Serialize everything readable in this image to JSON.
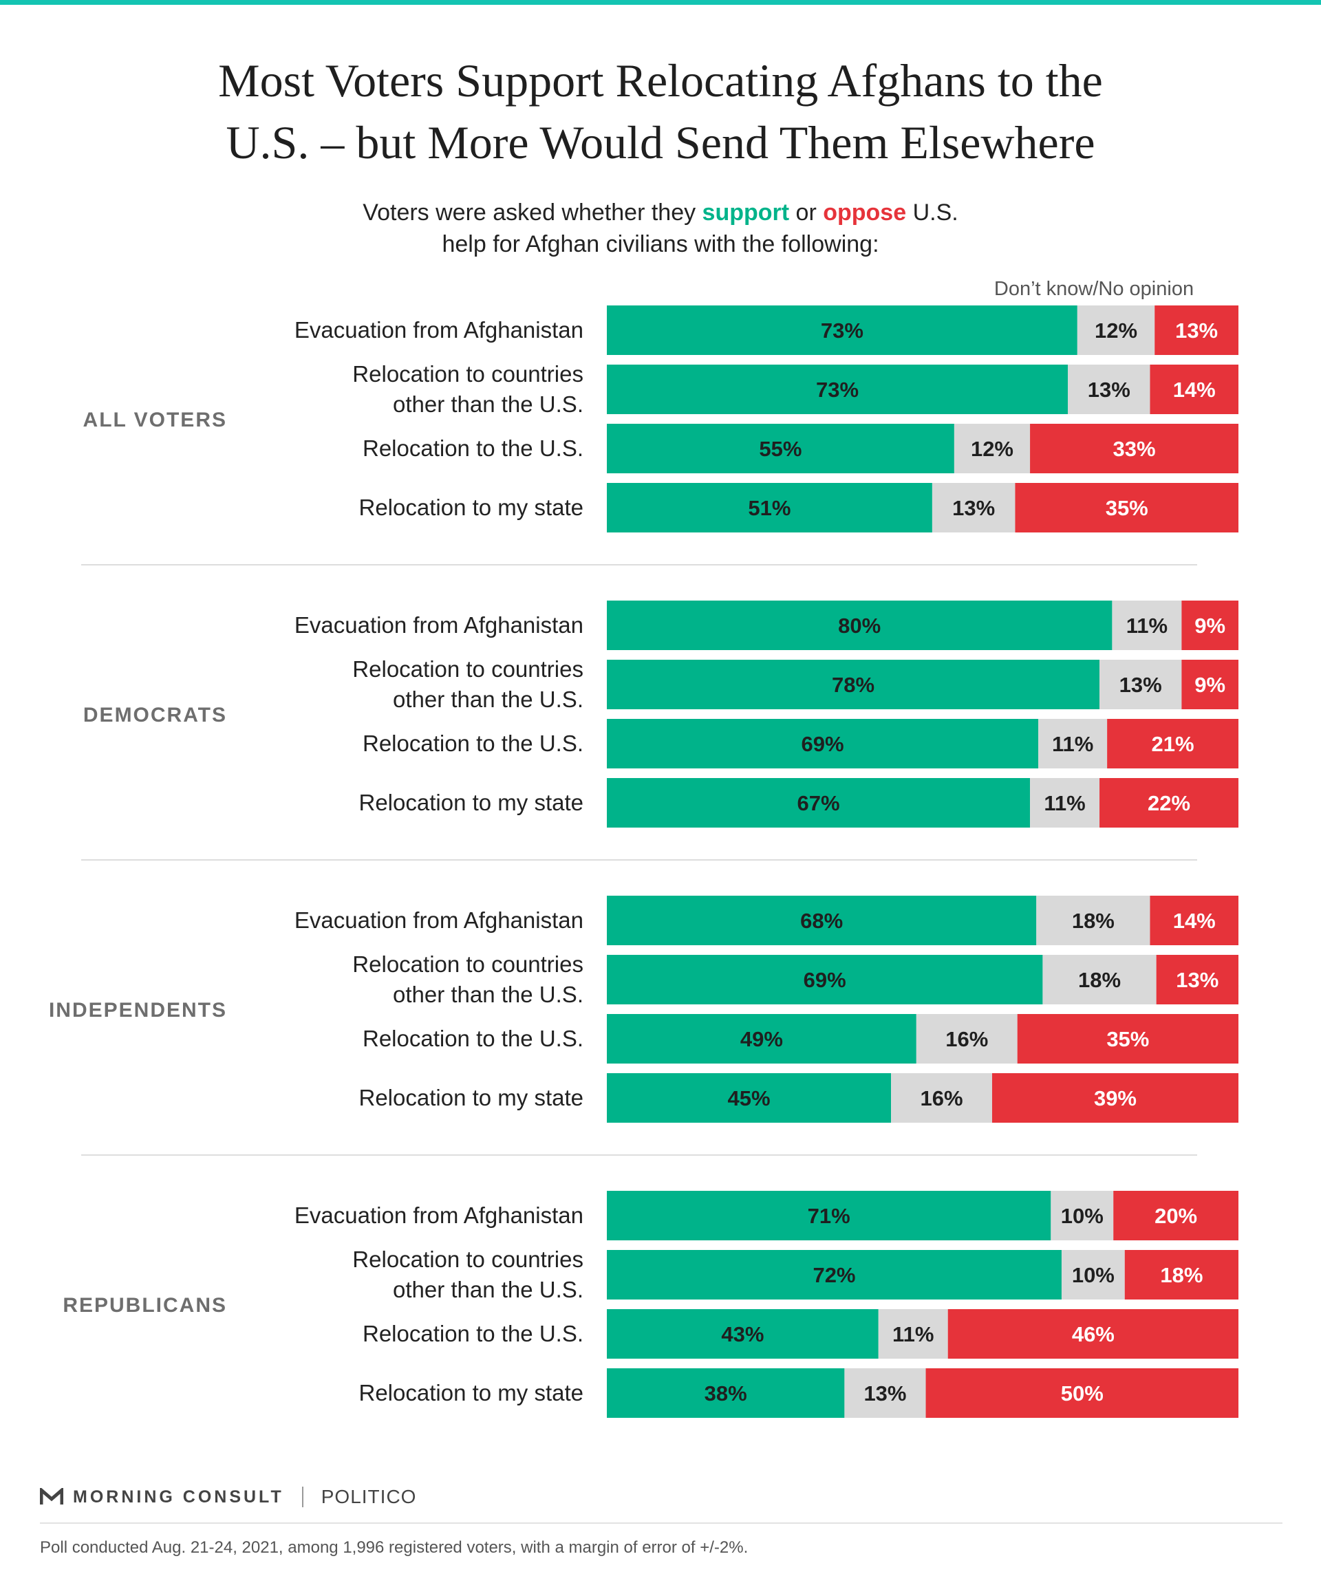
{
  "colors": {
    "top_rule": "#13c4b2",
    "support": "#00b38a",
    "dont_know": "#d9d9d9",
    "oppose": "#e6333a",
    "group_label": "#6e6e6e",
    "divider": "#dddddd"
  },
  "header": {
    "title_line1": "Most Voters Support Relocating Afghans to the",
    "title_line2": "U.S. – but More Would Send Them Elsewhere",
    "subtitle_pre": "Voters were asked whether they ",
    "subtitle_support": "support",
    "subtitle_or": " or ",
    "subtitle_oppose": "oppose",
    "subtitle_post": " U.S.",
    "subtitle_line2": "help for Afghan civilians with the following:",
    "dont_know_label": "Don’t know/No opinion"
  },
  "chart_data": {
    "type": "bar",
    "orientation": "horizontal",
    "stacked": true,
    "xlim": [
      0,
      100
    ],
    "series_names": [
      "support",
      "Don’t know/No opinion",
      "oppose"
    ],
    "groups": [
      {
        "name": "ALL VOTERS",
        "rows": [
          {
            "label": [
              "Evacuation from Afghanistan"
            ],
            "values": [
              73,
              12,
              13
            ]
          },
          {
            "label": [
              "Relocation to countries",
              "other than the U.S."
            ],
            "values": [
              73,
              13,
              14
            ]
          },
          {
            "label": [
              "Relocation to the U.S."
            ],
            "values": [
              55,
              12,
              33
            ]
          },
          {
            "label": [
              "Relocation to my state"
            ],
            "values": [
              51,
              13,
              35
            ]
          }
        ]
      },
      {
        "name": "DEMOCRATS",
        "rows": [
          {
            "label": [
              "Evacuation from Afghanistan"
            ],
            "values": [
              80,
              11,
              9
            ]
          },
          {
            "label": [
              "Relocation to countries",
              "other than the U.S."
            ],
            "values": [
              78,
              13,
              9
            ]
          },
          {
            "label": [
              "Relocation to the U.S."
            ],
            "values": [
              69,
              11,
              21
            ]
          },
          {
            "label": [
              "Relocation to my state"
            ],
            "values": [
              67,
              11,
              22
            ]
          }
        ]
      },
      {
        "name": "INDEPENDENTS",
        "rows": [
          {
            "label": [
              "Evacuation from Afghanistan"
            ],
            "values": [
              68,
              18,
              14
            ]
          },
          {
            "label": [
              "Relocation to countries",
              "other than the U.S."
            ],
            "values": [
              69,
              18,
              13
            ]
          },
          {
            "label": [
              "Relocation to the U.S."
            ],
            "values": [
              49,
              16,
              35
            ]
          },
          {
            "label": [
              "Relocation to my state"
            ],
            "values": [
              45,
              16,
              39
            ]
          }
        ]
      },
      {
        "name": "REPUBLICANS",
        "rows": [
          {
            "label": [
              "Evacuation from Afghanistan"
            ],
            "values": [
              71,
              10,
              20
            ]
          },
          {
            "label": [
              "Relocation to countries",
              "other than the U.S."
            ],
            "values": [
              72,
              10,
              18
            ]
          },
          {
            "label": [
              "Relocation to the U.S."
            ],
            "values": [
              43,
              11,
              46
            ]
          },
          {
            "label": [
              "Relocation to my state"
            ],
            "values": [
              38,
              13,
              50
            ]
          }
        ]
      }
    ]
  },
  "footer": {
    "brand1": "MORNING CONSULT",
    "brand2": "POLITICO",
    "note": "Poll conducted Aug. 21-24, 2021, among 1,996 registered voters, with a margin of error of +/-2%."
  }
}
